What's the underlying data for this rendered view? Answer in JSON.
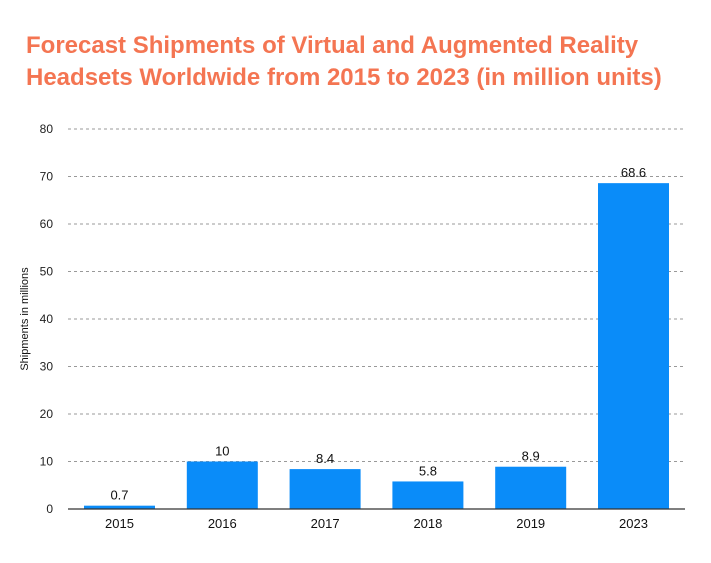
{
  "chart_data": {
    "type": "bar",
    "title": "Forecast Shipments of Virtual and Augmented Reality Headsets Worldwide from 2015 to 2023 (in million units)",
    "xlabel": "",
    "ylabel": "Shipments in millions",
    "categories": [
      "2015",
      "2016",
      "2017",
      "2018",
      "2019",
      "2023"
    ],
    "values": [
      0.7,
      10,
      8.4,
      5.8,
      8.9,
      68.6
    ],
    "data_labels": [
      "0.7",
      "10",
      "8.4",
      "5.8",
      "8.9",
      "68.6"
    ],
    "ylim": [
      0,
      80
    ],
    "yticks": [
      0,
      10,
      20,
      30,
      40,
      50,
      60,
      70,
      80
    ],
    "grid": true,
    "legend": "none",
    "colors": {
      "bar": "#0a8cf9",
      "title": "#f47552"
    }
  }
}
